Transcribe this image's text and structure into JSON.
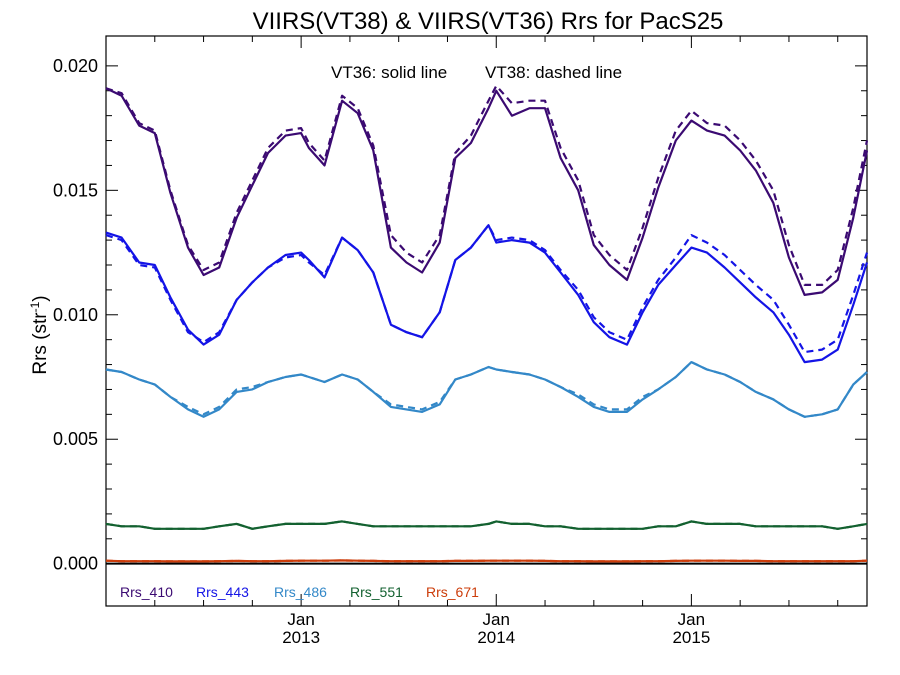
{
  "chart_data": {
    "type": "line",
    "title": "VIIRS(VT38) & VIIRS(VT36)  Rrs for PacS25",
    "ylabel_main": "Rrs (str",
    "ylabel_sup": "-1",
    "ylabel_close": ")",
    "xlim": [
      2012.0,
      2015.9
    ],
    "ylim": [
      -0.0017,
      0.0212
    ],
    "y_ticks": [
      {
        "value": 0.0,
        "label": "0.000"
      },
      {
        "value": 0.005,
        "label": "0.005"
      },
      {
        "value": 0.01,
        "label": "0.010"
      },
      {
        "value": 0.015,
        "label": "0.015"
      },
      {
        "value": 0.02,
        "label": "0.020"
      }
    ],
    "x_ticks": [
      {
        "value": 2013.0,
        "month": "Jan",
        "year": "2013"
      },
      {
        "value": 2014.0,
        "month": "Jan",
        "year": "2014"
      },
      {
        "value": 2015.0,
        "month": "Jan",
        "year": "2015"
      }
    ],
    "annotations": {
      "solid": "VT36: solid line",
      "dashed": "VT38: dashed line"
    },
    "x": [
      2012.0,
      2012.08,
      2012.17,
      2012.25,
      2012.33,
      2012.42,
      2012.5,
      2012.58,
      2012.67,
      2012.75,
      2012.83,
      2012.92,
      2013.0,
      2013.04,
      2013.12,
      2013.21,
      2013.29,
      2013.37,
      2013.46,
      2013.54,
      2013.62,
      2013.71,
      2013.79,
      2013.87,
      2013.96,
      2014.0,
      2014.08,
      2014.17,
      2014.25,
      2014.33,
      2014.42,
      2014.5,
      2014.58,
      2014.67,
      2014.75,
      2014.83,
      2014.92,
      2015.0,
      2015.08,
      2015.17,
      2015.25,
      2015.33,
      2015.42,
      2015.5,
      2015.58,
      2015.67,
      2015.75,
      2015.83,
      2015.9
    ],
    "series": [
      {
        "name": "Rrs_410",
        "color": "#3b0a72",
        "vt36": [
          0.0191,
          0.0188,
          0.0176,
          0.0173,
          0.0149,
          0.0127,
          0.0116,
          0.0119,
          0.0139,
          0.0152,
          0.0165,
          0.0172,
          0.0173,
          0.0167,
          0.016,
          0.0186,
          0.0181,
          0.0166,
          0.0127,
          0.0121,
          0.0117,
          0.0129,
          0.0163,
          0.0169,
          0.0183,
          0.019,
          0.018,
          0.0183,
          0.0183,
          0.0163,
          0.015,
          0.0128,
          0.012,
          0.0114,
          0.0131,
          0.0151,
          0.017,
          0.0178,
          0.0174,
          0.0172,
          0.0166,
          0.0158,
          0.0145,
          0.0123,
          0.0108,
          0.0109,
          0.0114,
          0.0139,
          0.0166
        ],
        "vt38": [
          0.0191,
          0.0189,
          0.0177,
          0.0174,
          0.015,
          0.0128,
          0.0118,
          0.0121,
          0.0141,
          0.0154,
          0.0167,
          0.0174,
          0.0175,
          0.0169,
          0.0162,
          0.0188,
          0.0183,
          0.0168,
          0.0132,
          0.0125,
          0.0121,
          0.0132,
          0.0165,
          0.0172,
          0.0186,
          0.0192,
          0.0185,
          0.0186,
          0.0186,
          0.0167,
          0.0154,
          0.0132,
          0.0124,
          0.0118,
          0.0135,
          0.0155,
          0.0174,
          0.0182,
          0.0177,
          0.0176,
          0.017,
          0.0162,
          0.015,
          0.0128,
          0.0112,
          0.0112,
          0.0118,
          0.0143,
          0.017
        ]
      },
      {
        "name": "Rrs_443",
        "color": "#1414e6",
        "vt36": [
          0.0133,
          0.0131,
          0.0121,
          0.012,
          0.0107,
          0.0094,
          0.0088,
          0.0092,
          0.0106,
          0.0113,
          0.0119,
          0.0124,
          0.0125,
          0.0122,
          0.0115,
          0.0131,
          0.0126,
          0.0117,
          0.0096,
          0.0093,
          0.0091,
          0.0101,
          0.0122,
          0.0127,
          0.0136,
          0.0129,
          0.013,
          0.0129,
          0.0125,
          0.0117,
          0.0108,
          0.0097,
          0.0091,
          0.0088,
          0.0101,
          0.0112,
          0.012,
          0.0127,
          0.0125,
          0.0119,
          0.0113,
          0.0107,
          0.0101,
          0.0092,
          0.0081,
          0.0082,
          0.0086,
          0.0104,
          0.0121
        ],
        "vt38": [
          0.0132,
          0.013,
          0.012,
          0.0119,
          0.0106,
          0.0093,
          0.0089,
          0.0093,
          0.0106,
          0.0113,
          0.0119,
          0.0123,
          0.0124,
          0.0121,
          0.0116,
          0.0131,
          0.0126,
          0.0117,
          0.0096,
          0.0093,
          0.0091,
          0.0101,
          0.0122,
          0.0127,
          0.0136,
          0.013,
          0.0131,
          0.013,
          0.0126,
          0.0118,
          0.011,
          0.0099,
          0.0093,
          0.009,
          0.0103,
          0.0114,
          0.0123,
          0.0132,
          0.0129,
          0.0124,
          0.0118,
          0.0112,
          0.0106,
          0.0096,
          0.0085,
          0.0086,
          0.009,
          0.0108,
          0.0125
        ]
      },
      {
        "name": "Rrs_486",
        "color": "#3388c8",
        "vt36": [
          0.0078,
          0.0077,
          0.0074,
          0.0072,
          0.0067,
          0.0062,
          0.0059,
          0.0062,
          0.0069,
          0.007,
          0.0073,
          0.0075,
          0.0076,
          0.0075,
          0.0073,
          0.0076,
          0.0074,
          0.0069,
          0.0063,
          0.0062,
          0.0061,
          0.0064,
          0.0074,
          0.0076,
          0.0079,
          0.0078,
          0.0077,
          0.0076,
          0.0074,
          0.0071,
          0.0067,
          0.0063,
          0.0061,
          0.0061,
          0.0066,
          0.007,
          0.0075,
          0.0081,
          0.0078,
          0.0076,
          0.0073,
          0.0069,
          0.0066,
          0.0062,
          0.0059,
          0.006,
          0.0062,
          0.0072,
          0.0077
        ],
        "vt38": [
          0.0078,
          0.0077,
          0.0074,
          0.0072,
          0.0067,
          0.0063,
          0.006,
          0.0063,
          0.007,
          0.0071,
          0.0073,
          0.0075,
          0.0076,
          0.0075,
          0.0073,
          0.0076,
          0.0074,
          0.0069,
          0.0064,
          0.0063,
          0.0062,
          0.0065,
          0.0074,
          0.0076,
          0.0079,
          0.0078,
          0.0077,
          0.0076,
          0.0074,
          0.0071,
          0.0068,
          0.0064,
          0.0062,
          0.0062,
          0.0067,
          0.007,
          0.0075,
          0.0081,
          0.0078,
          0.0076,
          0.0073,
          0.0069,
          0.0066,
          0.0062,
          0.0059,
          0.006,
          0.0062,
          0.0072,
          0.0077
        ]
      },
      {
        "name": "Rrs_551",
        "color": "#136130",
        "vt36": [
          0.0016,
          0.0015,
          0.0015,
          0.0014,
          0.0014,
          0.0014,
          0.0014,
          0.0015,
          0.0016,
          0.0014,
          0.0015,
          0.0016,
          0.0016,
          0.0016,
          0.0016,
          0.0017,
          0.0016,
          0.0015,
          0.0015,
          0.0015,
          0.0015,
          0.0015,
          0.0015,
          0.0015,
          0.0016,
          0.0017,
          0.0016,
          0.0016,
          0.0015,
          0.0015,
          0.0014,
          0.0014,
          0.0014,
          0.0014,
          0.0014,
          0.0015,
          0.0015,
          0.0017,
          0.0016,
          0.0016,
          0.0016,
          0.0015,
          0.0015,
          0.0015,
          0.0015,
          0.0015,
          0.0014,
          0.0015,
          0.0016
        ],
        "vt38": [
          0.0016,
          0.0015,
          0.0015,
          0.0014,
          0.0014,
          0.0014,
          0.0014,
          0.0015,
          0.0016,
          0.0014,
          0.0015,
          0.0016,
          0.0016,
          0.0016,
          0.0016,
          0.0017,
          0.0016,
          0.0015,
          0.0015,
          0.0015,
          0.0015,
          0.0015,
          0.0015,
          0.0015,
          0.0016,
          0.0017,
          0.0016,
          0.0016,
          0.0015,
          0.0015,
          0.0014,
          0.0014,
          0.0014,
          0.0014,
          0.0014,
          0.0015,
          0.0015,
          0.0017,
          0.0016,
          0.0016,
          0.0016,
          0.0015,
          0.0015,
          0.0015,
          0.0015,
          0.0015,
          0.0014,
          0.0015,
          0.0016
        ]
      },
      {
        "name": "Rrs_671",
        "color": "#cc3c0a",
        "vt36": [
          0.00012,
          0.0001,
          0.0001,
          0.0001,
          9e-05,
          9e-05,
          9e-05,
          0.0001,
          0.00011,
          0.0001,
          0.0001,
          0.00011,
          0.00012,
          0.00012,
          0.00012,
          0.00013,
          0.00012,
          0.00011,
          0.0001,
          0.0001,
          0.0001,
          0.0001,
          0.00011,
          0.00011,
          0.00012,
          0.00012,
          0.00012,
          0.00012,
          0.00011,
          0.0001,
          0.0001,
          9e-05,
          9e-05,
          9e-05,
          0.0001,
          0.0001,
          0.00011,
          0.00012,
          0.00012,
          0.00012,
          0.00011,
          0.00011,
          0.0001,
          0.0001,
          0.0001,
          0.0001,
          0.0001,
          0.0001,
          0.00012
        ],
        "vt38": [
          0.00012,
          0.0001,
          0.0001,
          0.0001,
          9e-05,
          9e-05,
          9e-05,
          0.0001,
          0.00011,
          0.0001,
          0.0001,
          0.00011,
          0.00012,
          0.00012,
          0.00012,
          0.00013,
          0.00012,
          0.00011,
          0.0001,
          0.0001,
          0.0001,
          0.0001,
          0.00011,
          0.00011,
          0.00012,
          0.00012,
          0.00012,
          0.00012,
          0.00011,
          0.0001,
          0.0001,
          9e-05,
          9e-05,
          9e-05,
          0.0001,
          0.0001,
          0.00011,
          0.00012,
          0.00012,
          0.00012,
          0.00011,
          0.00011,
          0.0001,
          0.0001,
          0.0001,
          0.0001,
          0.0001,
          0.0001,
          0.00012
        ]
      }
    ]
  }
}
